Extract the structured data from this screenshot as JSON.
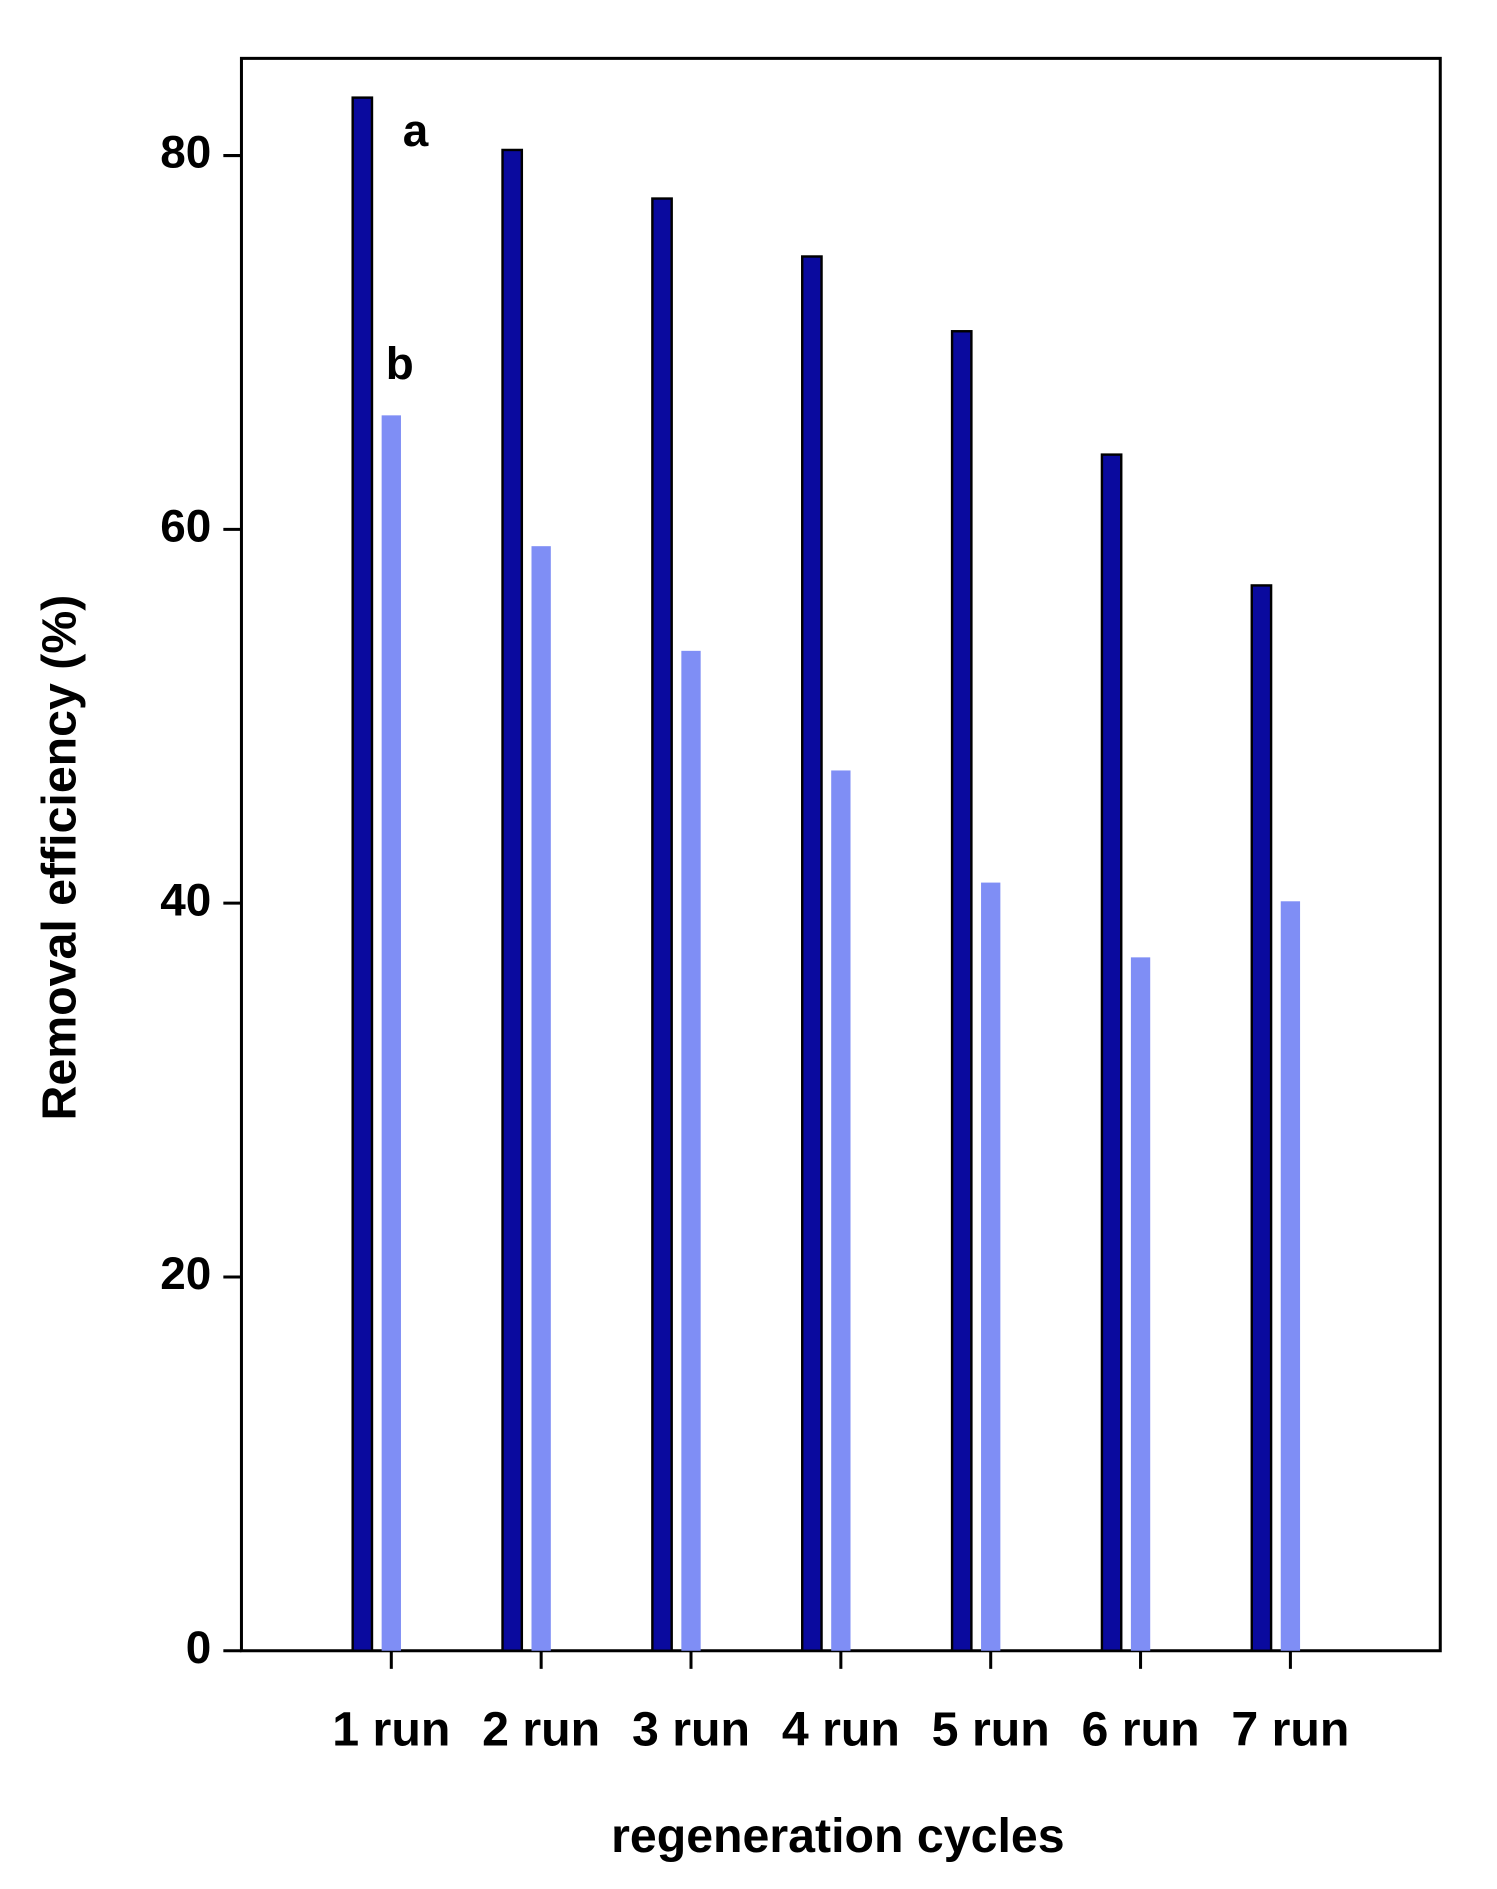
{
  "chart_data": {
    "type": "bar",
    "x_label": "regeneration cycles",
    "y_label": "Removal efficiency (%)",
    "categories": [
      "1 run",
      "2 run",
      "3 run",
      "4 run",
      "5 run",
      "6 run",
      "7 run"
    ],
    "series": [
      {
        "name": "a",
        "color": "#0a0a9e",
        "values": [
          83.1,
          80.3,
          77.7,
          74.6,
          70.6,
          64.0,
          57.0
        ]
      },
      {
        "name": "b",
        "color": "#7f8ef5",
        "values": [
          66.1,
          59.1,
          53.5,
          47.1,
          41.1,
          37.1,
          40.1
        ]
      }
    ],
    "ylim": [
      0,
      85.2
    ],
    "yticks": [
      0,
      20,
      40,
      60,
      80
    ]
  }
}
